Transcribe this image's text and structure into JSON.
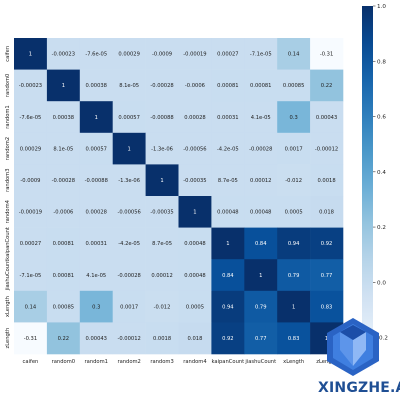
{
  "chart_data": {
    "type": "heatmap",
    "title": "",
    "xlabel": "",
    "ylabel": "",
    "labels": [
      "caifen",
      "random0",
      "random1",
      "random2",
      "random3",
      "random4",
      "kaipanCount",
      "jiashuCount",
      "xLength",
      "zLength"
    ],
    "matrix": [
      [
        1,
        -0.00023,
        -7.6e-05,
        0.00029,
        -0.0009,
        -0.00019,
        0.00027,
        -7.1e-05,
        0.14,
        -0.31
      ],
      [
        -0.00023,
        1,
        0.00038,
        8.1e-05,
        -0.00028,
        -0.0006,
        0.00081,
        0.00081,
        0.00085,
        0.22
      ],
      [
        -7.6e-05,
        0.00038,
        1,
        0.00057,
        -0.00088,
        0.00028,
        0.00031,
        4.1e-05,
        0.3,
        0.00043
      ],
      [
        0.00029,
        8.1e-05,
        0.00057,
        1,
        -1.3e-06,
        -0.00056,
        -4.2e-05,
        -0.00028,
        0.0017,
        -0.00012
      ],
      [
        -0.0009,
        -0.00028,
        -0.00088,
        -1.3e-06,
        1,
        -0.00035,
        8.7e-05,
        0.00012,
        -0.012,
        0.0018
      ],
      [
        -0.00019,
        -0.0006,
        0.00028,
        -0.00056,
        -0.00035,
        1,
        0.00048,
        0.00048,
        0.0005,
        0.018
      ],
      [
        0.00027,
        0.00081,
        0.00031,
        -4.2e-05,
        8.7e-05,
        0.00048,
        1,
        0.84,
        0.94,
        0.92
      ],
      [
        -7.1e-05,
        0.00081,
        4.1e-05,
        -0.00028,
        0.00012,
        0.00048,
        0.84,
        1,
        0.79,
        0.77
      ],
      [
        0.14,
        0.00085,
        0.3,
        0.0017,
        -0.012,
        0.0005,
        0.94,
        0.79,
        1,
        0.83
      ],
      [
        -0.31,
        0.22,
        0.00043,
        -0.00012,
        0.0018,
        0.018,
        0.92,
        0.77,
        0.83,
        1
      ]
    ],
    "cell_text": [
      [
        "1",
        "-0.00023",
        "-7.6e-05",
        "0.00029",
        "-0.0009",
        "-0.00019",
        "0.00027",
        "-7.1e-05",
        "0.14",
        "-0.31"
      ],
      [
        "-0.00023",
        "1",
        "0.00038",
        "8.1e-05",
        "-0.00028",
        "-0.0006",
        "0.00081",
        "0.00081",
        "0.00085",
        "0.22"
      ],
      [
        "-7.6e-05",
        "0.00038",
        "1",
        "0.00057",
        "-0.00088",
        "0.00028",
        "0.00031",
        "4.1e-05",
        "0.3",
        "0.00043"
      ],
      [
        "0.00029",
        "8.1e-05",
        "0.00057",
        "1",
        "-1.3e-06",
        "-0.00056",
        "-4.2e-05",
        "-0.00028",
        "0.0017",
        "-0.00012"
      ],
      [
        "-0.0009",
        "-0.00028",
        "-0.00088",
        "-1.3e-06",
        "1",
        "-0.00035",
        "8.7e-05",
        "0.00012",
        "-0.012",
        "0.0018"
      ],
      [
        "-0.00019",
        "-0.0006",
        "0.00028",
        "-0.00056",
        "-0.00035",
        "1",
        "0.00048",
        "0.00048",
        "0.0005",
        "0.018"
      ],
      [
        "0.00027",
        "0.00081",
        "0.00031",
        "-4.2e-05",
        "8.7e-05",
        "0.00048",
        "1",
        "0.84",
        "0.94",
        "0.92"
      ],
      [
        "-7.1e-05",
        "0.00081",
        "4.1e-05",
        "-0.00028",
        "0.00012",
        "0.00048",
        "0.84",
        "1",
        "0.79",
        "0.77"
      ],
      [
        "0.14",
        "0.00085",
        "0.3",
        "0.0017",
        "-0.012",
        "0.0005",
        "0.94",
        "0.79",
        "1",
        "0.83"
      ],
      [
        "-0.31",
        "0.22",
        "0.00043",
        "-0.00012",
        "0.0018",
        "0.018",
        "0.92",
        "0.77",
        "0.83",
        "1"
      ]
    ],
    "colorbar": {
      "range": [
        -0.31,
        1.0
      ],
      "ticks": [
        1.0,
        0.8,
        0.6,
        0.4,
        0.2,
        0.0,
        -0.2
      ],
      "tick_labels": [
        "1.0",
        "0.8",
        "0.6",
        "0.4",
        "0.2",
        "0.0",
        "-0.2"
      ],
      "colormap": "Blues"
    },
    "grid": false,
    "legend": "colorbar-right"
  },
  "watermark": {
    "text": "XINGZHE.AI",
    "color": "#1f4f94"
  }
}
